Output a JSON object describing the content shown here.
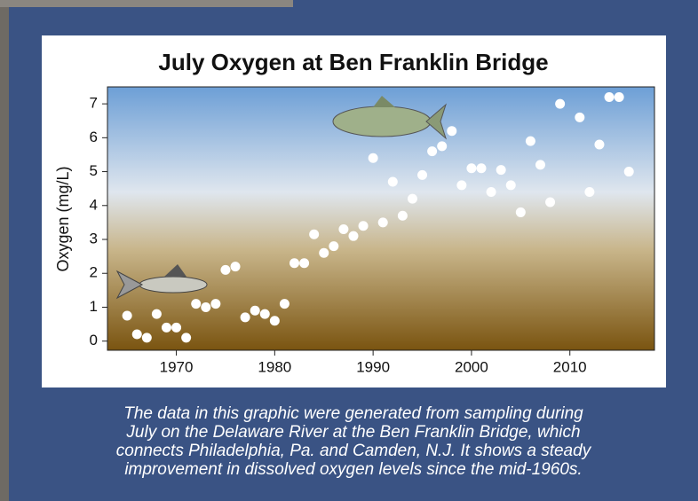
{
  "chart_data": {
    "type": "scatter",
    "title": "July Oxygen at Ben Franklin Bridge",
    "y_label": "Oxygen (mg/L)",
    "x": [
      1965,
      1966,
      1967,
      1968,
      1969,
      1970,
      1971,
      1972,
      1973,
      1974,
      1975,
      1976,
      1977,
      1978,
      1979,
      1980,
      1981,
      1982,
      1983,
      1984,
      1985,
      1986,
      1987,
      1988,
      1989,
      1990,
      1991,
      1992,
      1993,
      1994,
      1995,
      1996,
      1997,
      1998,
      1999,
      2000,
      2001,
      2002,
      2003,
      2004,
      2005,
      2006,
      2007,
      2008,
      2009,
      2011,
      2012,
      2013,
      2014,
      2015,
      2016
    ],
    "values": [
      0.75,
      0.2,
      0.1,
      0.8,
      0.4,
      0.4,
      0.1,
      1.1,
      1.0,
      1.1,
      2.1,
      2.2,
      0.7,
      0.9,
      0.8,
      0.6,
      1.1,
      2.3,
      2.3,
      3.15,
      2.6,
      2.8,
      3.3,
      3.1,
      3.4,
      5.4,
      3.5,
      4.7,
      3.7,
      4.2,
      4.9,
      5.6,
      5.75,
      6.2,
      4.6,
      5.1,
      5.1,
      4.4,
      5.05,
      4.6,
      3.8,
      5.9,
      5.2,
      4.1,
      7.0,
      6.6,
      4.4,
      5.8,
      7.2,
      7.2,
      5.0
    ],
    "color": "#ffffff",
    "xlim": [
      1963,
      2018.6
    ],
    "xticks": [
      1970,
      1980,
      1990,
      2000,
      2010
    ],
    "ylim": [
      -0.27,
      7.5
    ],
    "yticks": [
      0,
      1,
      2,
      3,
      4,
      5,
      6,
      7
    ]
  },
  "caption": [
    "The data in this graphic were generated from sampling during",
    "July on the Delaware River at the Ben Franklin Bridge, which",
    "connects Philadelphia, Pa. and Camden, N.J.  It shows a steady",
    "improvement in dissolved oxygen levels since the mid-1960s."
  ]
}
